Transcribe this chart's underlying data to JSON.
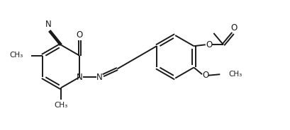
{
  "bg_color": "#ffffff",
  "line_color": "#1a1a1a",
  "line_width": 1.4,
  "font_size": 8.5,
  "figsize": [
    4.09,
    1.84
  ],
  "dpi": 100,
  "xlim": [
    0,
    10.5
  ],
  "ylim": [
    0,
    4.5
  ]
}
